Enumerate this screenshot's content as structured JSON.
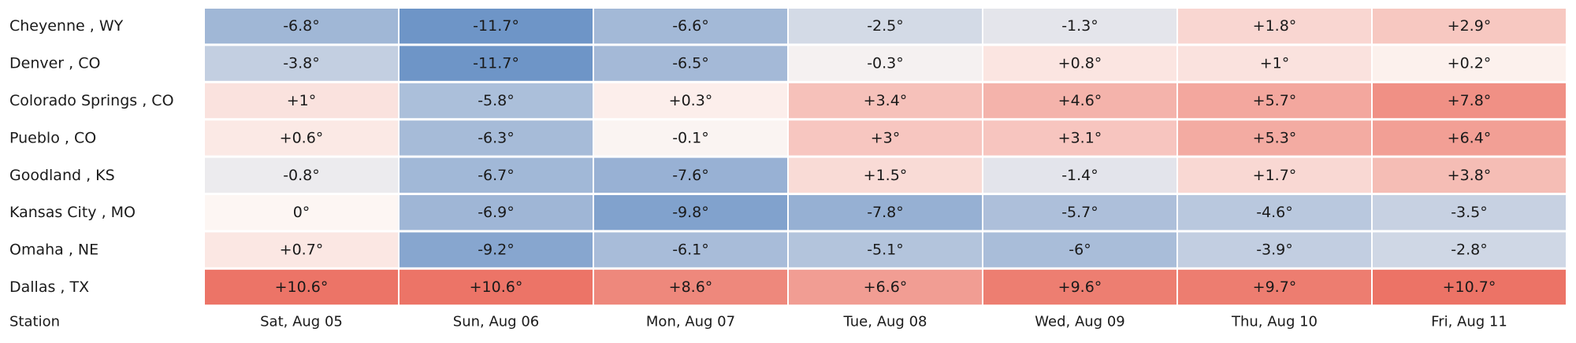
{
  "chart_data": {
    "type": "heatmap",
    "row_header": "Station",
    "rows": [
      "Cheyenne , WY",
      "Denver , CO",
      "Colorado Springs , CO",
      "Pueblo , CO",
      "Goodland , KS",
      "Kansas City , MO",
      "Omaha , NE",
      "Dallas , TX"
    ],
    "columns": [
      "Sat, Aug 05",
      "Sun, Aug 06",
      "Mon, Aug 07",
      "Tue, Aug 08",
      "Wed, Aug 09",
      "Thu, Aug 10",
      "Fri, Aug 11"
    ],
    "values": [
      [
        -6.8,
        -11.7,
        -6.6,
        -2.5,
        -1.3,
        1.8,
        2.9
      ],
      [
        -3.8,
        -11.7,
        -6.5,
        -0.3,
        0.8,
        1,
        0.2
      ],
      [
        1,
        -5.8,
        0.3,
        3.4,
        4.6,
        5.7,
        7.8
      ],
      [
        0.6,
        -6.3,
        -0.1,
        3,
        3.1,
        5.3,
        6.4
      ],
      [
        -0.8,
        -6.7,
        -7.6,
        1.5,
        -1.4,
        1.7,
        3.8
      ],
      [
        0,
        -6.9,
        -9.8,
        -7.8,
        -5.7,
        -4.6,
        -3.5
      ],
      [
        0.7,
        -9.2,
        -6.1,
        -5.1,
        -6,
        -3.9,
        -2.8
      ],
      [
        10.6,
        10.6,
        8.6,
        6.6,
        9.6,
        9.7,
        10.7
      ]
    ],
    "value_labels": [
      [
        "-6.8°",
        "-11.7°",
        "-6.6°",
        "-2.5°",
        "-1.3°",
        "+1.8°",
        "+2.9°"
      ],
      [
        "-3.8°",
        "-11.7°",
        "-6.5°",
        "-0.3°",
        "+0.8°",
        "+1°",
        "+0.2°"
      ],
      [
        "+1°",
        "-5.8°",
        "+0.3°",
        "+3.4°",
        "+4.6°",
        "+5.7°",
        "+7.8°"
      ],
      [
        "+0.6°",
        "-6.3°",
        "-0.1°",
        "+3°",
        "+3.1°",
        "+5.3°",
        "+6.4°"
      ],
      [
        "-0.8°",
        "-6.7°",
        "-7.6°",
        "+1.5°",
        "-1.4°",
        "+1.7°",
        "+3.8°"
      ],
      [
        "0°",
        "-6.9°",
        "-9.8°",
        "-7.8°",
        "-5.7°",
        "-4.6°",
        "-3.5°"
      ],
      [
        "+0.7°",
        "-9.2°",
        "-6.1°",
        "-5.1°",
        "-6°",
        "-3.9°",
        "-2.8°"
      ],
      [
        "+10.6°",
        "+10.6°",
        "+8.6°",
        "+6.6°",
        "+9.6°",
        "+9.7°",
        "+10.7°"
      ]
    ],
    "color_scale": {
      "type": "diverging",
      "negative_color": "#6b93c6",
      "neutral_color": "#fdf6f3",
      "positive_color": "#ea6658",
      "value_range": [
        -12,
        12
      ]
    },
    "legend": "none",
    "grid": false
  }
}
